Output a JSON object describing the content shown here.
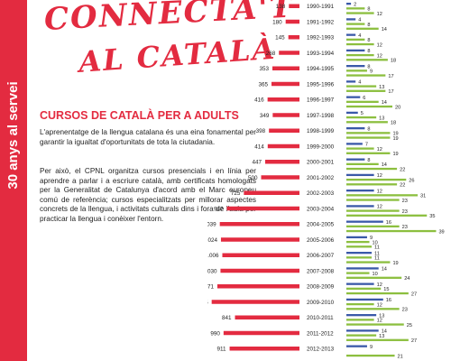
{
  "sidebar": {
    "text": "30 anys al servei"
  },
  "header": {
    "title_line1": "CONNECTA'T",
    "title_line2": "AL CATALÀ"
  },
  "section": {
    "heading": "CURSOS DE CATALÀ PER A ADULTS",
    "paragraph1": "L'aprenentatge de la llengua catalana és una eina fonamental per garantir la igualtat d'oportunitats de tota la ciutadania.",
    "paragraph2": "Per això, el CPNL organitza cursos presencials i en línia per aprendre a parlar i a escriure català, amb certificats homologats per la Generalitat de Catalunya d'acord amb el Marc europeu comú de referència; cursos especialitzats per millorar aspectes concrets de la llengua, i activitats culturals dins i fora de l'aula per practicar la llengua i conèixer l'entorn."
  },
  "colors": {
    "accent": "#e32b40",
    "blue": "#3a59a8",
    "green": "#8cbf3f",
    "text": "#222222"
  },
  "chart_data": {
    "type": "bar",
    "orientation": "horizontal",
    "categories": [
      "1990-1991",
      "1991-1992",
      "1992-1993",
      "1993-1994",
      "1994-1995",
      "1995-1996",
      "1996-1997",
      "1997-1998",
      "1998-1999",
      "1999-2000",
      "2000-2001",
      "2001-2002",
      "2002-2003",
      "2003-2004",
      "2004-2005",
      "2005-2006",
      "2006-2007",
      "2007-2008",
      "2008-2009",
      "2009-2010",
      "2010-2011",
      "2011-2012",
      "2012-2013"
    ],
    "left_series": {
      "values": [
        138,
        180,
        145,
        268,
        353,
        365,
        416,
        349,
        398,
        414,
        447,
        500,
        725,
        947,
        1039,
        1024,
        1006,
        1030,
        1071,
        1145,
        841,
        990,
        911
      ],
      "labels": [
        "138",
        "180",
        "145",
        "268",
        "353",
        "365",
        "416",
        "349",
        "398",
        "414",
        "447",
        "500",
        "725",
        "947",
        "1.039",
        "1.024",
        "1.006",
        "1.030",
        "1.071",
        "1.145",
        "841",
        "990",
        "911"
      ]
    },
    "right_series": [
      {
        "color": "#3a59a8",
        "values": [
          2,
          4,
          4,
          8,
          8,
          4,
          6,
          5,
          8,
          7,
          8,
          12,
          12,
          12,
          16,
          9,
          11,
          14,
          12,
          16,
          13,
          14,
          9
        ]
      },
      {
        "color": "#8cbf3f",
        "values": [
          8,
          8,
          8,
          12,
          9,
          13,
          14,
          13,
          19,
          12,
          14,
          26,
          31,
          23,
          23,
          10,
          11,
          10,
          15,
          12,
          12,
          13,
          null
        ]
      },
      {
        "color": "#8cbf3f",
        "values": [
          12,
          14,
          12,
          18,
          17,
          17,
          20,
          18,
          19,
          19,
          22,
          22,
          23,
          35,
          39,
          11,
          19,
          24,
          27,
          23,
          25,
          27,
          21
        ]
      }
    ]
  }
}
